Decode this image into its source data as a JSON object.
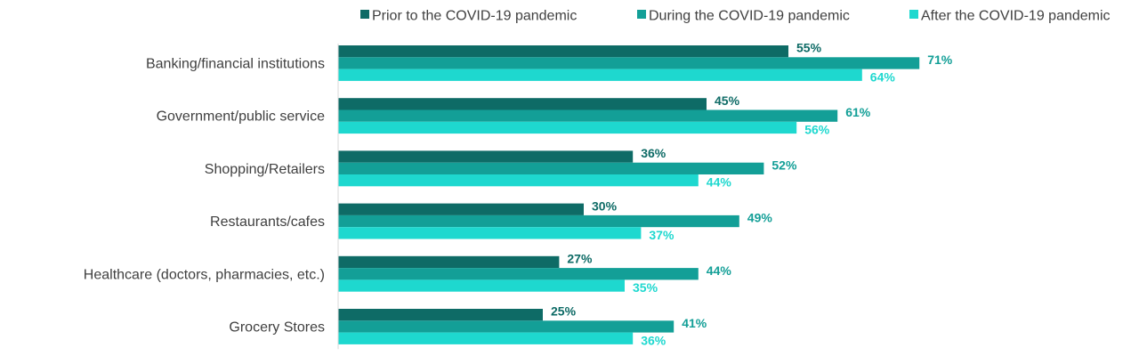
{
  "chart_data": {
    "type": "bar",
    "orientation": "horizontal",
    "categories": [
      "Banking/financial institutions",
      "Government/public service",
      "Shopping/Retailers",
      "Restaurants/cafes",
      "Healthcare (doctors, pharmacies, etc.)",
      "Grocery Stores"
    ],
    "series": [
      {
        "name": "Prior to the COVID-19 pandemic",
        "color": "#0e6b66",
        "values": [
          55,
          45,
          36,
          30,
          27,
          25
        ],
        "labels": [
          "55%",
          "45%",
          "36%",
          "30%",
          "27%",
          "25%"
        ]
      },
      {
        "name": "During the COVID-19 pandemic",
        "color": "#139f97",
        "values": [
          71,
          61,
          52,
          49,
          44,
          41
        ],
        "labels": [
          "71%",
          "61%",
          "52%",
          "49%",
          "44%",
          "41%"
        ]
      },
      {
        "name": "After the COVID-19 pandemic",
        "color": "#1ed8cf",
        "values": [
          64,
          56,
          44,
          37,
          35,
          36
        ],
        "labels": [
          "64%",
          "56%",
          "44%",
          "37%",
          "35%",
          "36%"
        ]
      }
    ],
    "label_colors": [
      "#0e6b66",
      "#139f97",
      "#1ed8cf"
    ],
    "xlim": [
      0,
      100
    ],
    "legend_position": "top",
    "grid": false
  }
}
